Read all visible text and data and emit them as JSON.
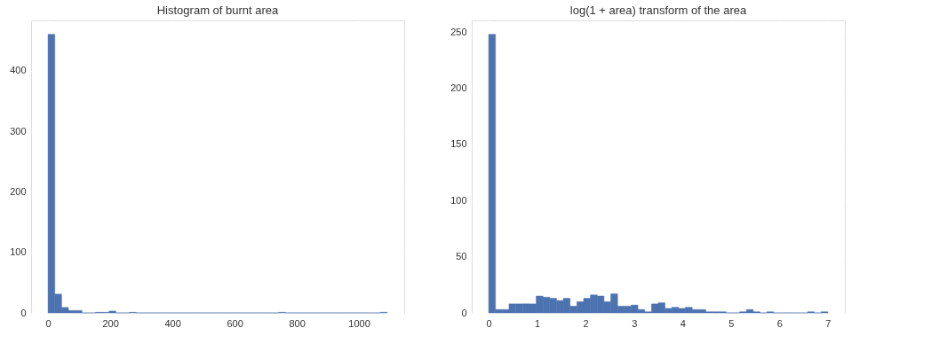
{
  "chart_data": [
    {
      "type": "histogram",
      "title": "Histogram of burnt area",
      "color": "#4c72b0",
      "grid": true,
      "bins": [
        0,
        21.82,
        43.63,
        65.45,
        87.27,
        109.08,
        130.9,
        152.72,
        174.53,
        196.35,
        218.17,
        239.98,
        261.8,
        283.62,
        305.44,
        327.25,
        349.07,
        370.89,
        392.7,
        414.52,
        436.34,
        458.15,
        479.97,
        501.79,
        523.6,
        545.42,
        567.24,
        589.05,
        610.87,
        632.69,
        654.5,
        676.32,
        698.14,
        719.95,
        741.77,
        763.59,
        785.41,
        807.22,
        829.04,
        850.86,
        872.67,
        894.49,
        916.31,
        938.12,
        959.94,
        981.76,
        1003.57,
        1025.39,
        1047.21,
        1069.02,
        1090.84
      ],
      "values": [
        460,
        31,
        9,
        4,
        4,
        0,
        0,
        1,
        1,
        3,
        0,
        0,
        1,
        0,
        0,
        0,
        0,
        0,
        0,
        0,
        0,
        0,
        0,
        0,
        0,
        0,
        0,
        0,
        0,
        0,
        0,
        0,
        0,
        0,
        1,
        0,
        0,
        0,
        0,
        0,
        0,
        0,
        0,
        0,
        0,
        0,
        0,
        0,
        0,
        1
      ],
      "xlim": [
        -54.5,
        1145.4
      ],
      "ylim": [
        0,
        483
      ],
      "xticks": [
        0,
        200,
        400,
        600,
        800,
        1000
      ],
      "yticks": [
        0,
        100,
        200,
        300,
        400
      ]
    },
    {
      "type": "histogram",
      "title": "log(1 + area) transform of the area",
      "color": "#4c72b0",
      "grid": true,
      "bins": [
        0,
        0.14,
        0.28,
        0.42,
        0.56,
        0.7,
        0.84,
        0.98,
        1.12,
        1.26,
        1.4,
        1.54,
        1.68,
        1.82,
        1.96,
        2.1,
        2.24,
        2.38,
        2.52,
        2.66,
        2.8,
        2.94,
        3.08,
        3.22,
        3.36,
        3.5,
        3.64,
        3.78,
        3.92,
        4.06,
        4.2,
        4.34,
        4.48,
        4.62,
        4.76,
        4.9,
        5.04,
        5.18,
        5.32,
        5.46,
        5.6,
        5.74,
        5.88,
        6.02,
        6.16,
        6.3,
        6.44,
        6.58,
        6.72,
        6.86,
        7.0
      ],
      "values": [
        248,
        3,
        3,
        8,
        8,
        8,
        8,
        15,
        14,
        13,
        11,
        13,
        6,
        10,
        13,
        16,
        15,
        10,
        17,
        6,
        6,
        7,
        3,
        1,
        8,
        9,
        4,
        5,
        4,
        5,
        3,
        3,
        1,
        1,
        1,
        0,
        0,
        1,
        3,
        1,
        0,
        1,
        0,
        0,
        0,
        0,
        0,
        1,
        0,
        1
      ],
      "xlim": [
        -0.35,
        7.35
      ],
      "ylim": [
        0,
        260.4
      ],
      "xticks": [
        0,
        1,
        2,
        3,
        4,
        5,
        6,
        7
      ],
      "yticks": [
        0,
        50,
        100,
        150,
        200,
        250
      ]
    }
  ]
}
